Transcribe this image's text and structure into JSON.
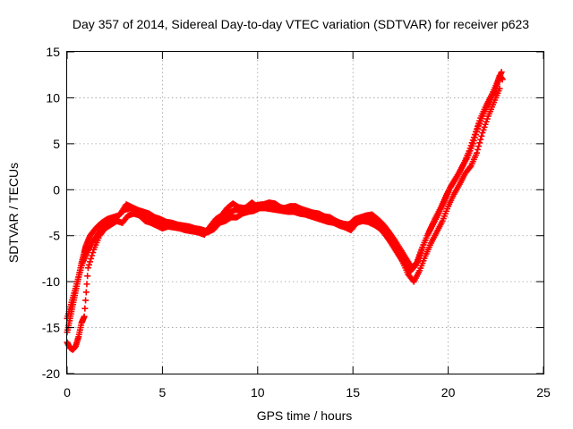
{
  "chart_data": {
    "type": "scatter",
    "title": "Day 357 of 2014, Sidereal Day-to-day VTEC variation (SDTVAR) for receiver p623",
    "xlabel": "GPS time / hours",
    "ylabel": "SDTVAR / TECUs",
    "xlim": [
      0,
      25
    ],
    "ylim": [
      -20,
      15
    ],
    "xticks": [
      0,
      5,
      10,
      15,
      20,
      25
    ],
    "yticks": [
      -20,
      -15,
      -10,
      -5,
      0,
      5,
      10,
      15
    ],
    "grid": true,
    "marker": "+",
    "color": "#ff0000",
    "series": [
      {
        "values_x": [
          0.0,
          0.15,
          0.3,
          0.45,
          0.6,
          0.75,
          0.9,
          1.0,
          1.2,
          1.5,
          1.8,
          2.1,
          2.4,
          2.7,
          3.0,
          3.3,
          3.6,
          3.9,
          4.2,
          4.5,
          4.8,
          5.1,
          5.4,
          5.7,
          6.0,
          6.3,
          6.6,
          6.9,
          7.2,
          7.5,
          7.8,
          8.1,
          8.4,
          8.7,
          9.0,
          9.3,
          9.6,
          9.9,
          10.2,
          10.5,
          10.8,
          11.1,
          11.4,
          11.7,
          12.0,
          12.3,
          12.6,
          12.9,
          13.2,
          13.5,
          13.8,
          14.1,
          14.4,
          14.7,
          15.0,
          15.3,
          15.6,
          15.9,
          16.2,
          16.5,
          16.8,
          17.1,
          17.4,
          17.7,
          18.0,
          18.3,
          18.6,
          18.9,
          19.2,
          19.5,
          19.8,
          20.1,
          20.4,
          20.7,
          21.0,
          21.3,
          21.6,
          21.9,
          22.2,
          22.5,
          22.7,
          22.85
        ],
        "values_y": [
          -15.5,
          -14.0,
          -12.5,
          -11.0,
          -9.5,
          -8.0,
          -6.8,
          -6.0,
          -5.0,
          -4.2,
          -3.6,
          -3.2,
          -3.0,
          -2.8,
          -2.2,
          -2.0,
          -2.3,
          -2.8,
          -3.2,
          -3.4,
          -3.6,
          -3.6,
          -3.7,
          -3.8,
          -4.0,
          -4.1,
          -4.3,
          -4.6,
          -4.9,
          -4.0,
          -3.2,
          -2.8,
          -2.0,
          -1.5,
          -1.9,
          -2.0,
          -1.8,
          -1.7,
          -1.6,
          -1.6,
          -1.7,
          -1.9,
          -2.0,
          -1.8,
          -1.8,
          -2.1,
          -2.3,
          -2.5,
          -2.6,
          -2.9,
          -3.0,
          -3.4,
          -3.7,
          -3.8,
          -3.6,
          -3.2,
          -3.0,
          -3.1,
          -3.6,
          -4.2,
          -5.0,
          -6.0,
          -7.0,
          -8.0,
          -8.9,
          -8.2,
          -6.5,
          -5.0,
          -3.8,
          -2.6,
          -1.2,
          0.2,
          1.2,
          2.4,
          3.5,
          5.0,
          7.0,
          8.5,
          9.8,
          11.0,
          12.4,
          12.0
        ]
      },
      {
        "values_x": [
          0.0,
          0.2,
          0.4,
          0.6,
          0.8,
          1.0,
          1.3,
          1.6,
          1.9,
          2.2,
          2.5,
          2.8,
          3.1,
          3.4,
          3.7,
          4.0,
          4.3,
          4.6,
          4.9,
          5.2,
          5.5,
          5.8,
          6.1,
          6.4,
          6.7,
          7.0,
          7.3,
          7.6,
          7.9,
          8.2,
          8.5,
          8.8,
          9.1,
          9.4,
          9.7,
          10.0,
          10.3,
          10.6,
          10.9,
          11.2,
          11.5,
          11.8,
          12.1,
          12.4,
          12.7,
          13.0,
          13.3,
          13.6,
          13.9,
          14.2,
          14.5,
          14.8,
          15.1,
          15.4,
          15.7,
          16.0,
          16.3,
          16.6,
          16.9,
          17.2,
          17.5,
          17.8,
          18.1,
          18.4,
          18.7,
          19.0,
          19.3,
          19.6,
          19.9,
          20.2,
          20.5,
          20.8,
          21.1,
          21.4,
          21.7,
          22.0,
          22.3,
          22.6,
          22.8
        ],
        "values_y": [
          -14.0,
          -12.5,
          -11.0,
          -9.5,
          -8.0,
          -7.0,
          -5.8,
          -4.8,
          -4.0,
          -3.6,
          -3.2,
          -2.6,
          -1.6,
          -1.9,
          -2.2,
          -2.4,
          -2.6,
          -3.0,
          -3.2,
          -3.5,
          -3.6,
          -3.8,
          -3.9,
          -4.0,
          -4.2,
          -4.3,
          -4.5,
          -4.0,
          -3.4,
          -3.0,
          -2.5,
          -2.2,
          -2.2,
          -1.9,
          -1.4,
          -1.9,
          -1.6,
          -1.4,
          -1.5,
          -1.9,
          -2.1,
          -2.2,
          -2.1,
          -2.3,
          -2.5,
          -2.7,
          -2.8,
          -3.0,
          -3.2,
          -3.5,
          -3.7,
          -3.8,
          -3.2,
          -3.0,
          -2.8,
          -2.7,
          -3.2,
          -3.8,
          -4.6,
          -5.5,
          -6.5,
          -7.5,
          -8.5,
          -7.8,
          -6.0,
          -4.5,
          -3.2,
          -2.0,
          -0.6,
          0.6,
          1.6,
          2.7,
          4.2,
          6.0,
          7.8,
          9.2,
          10.4,
          11.8,
          12.8
        ]
      },
      {
        "values_x": [
          0.0,
          0.15,
          0.3,
          0.45,
          0.6,
          0.75,
          0.9,
          1.1,
          1.4,
          1.7,
          2.0,
          2.3,
          2.6,
          2.9,
          3.2,
          3.5,
          3.8,
          4.1,
          4.4,
          4.7,
          5.0,
          5.3,
          5.6,
          5.9,
          6.2,
          6.5,
          6.8,
          7.1,
          7.4,
          7.7,
          8.0,
          8.3,
          8.6,
          8.9,
          9.2,
          9.5,
          9.8,
          10.1,
          10.4,
          10.7,
          11.0,
          11.3,
          11.6,
          11.9,
          12.2,
          12.5,
          12.8,
          13.1,
          13.4,
          13.7,
          14.0,
          14.3,
          14.6,
          14.9,
          15.2,
          15.5,
          15.8,
          16.1,
          16.4,
          16.7,
          17.0,
          17.3,
          17.6,
          17.9,
          18.2,
          18.5,
          18.8,
          19.1,
          19.4,
          19.7,
          20.0,
          20.3,
          20.6,
          20.9,
          21.2,
          21.5,
          21.8,
          22.1,
          22.4,
          22.7
        ],
        "values_y": [
          -16.6,
          -17.2,
          -17.4,
          -17.0,
          -16.0,
          -14.5,
          -13.8,
          -8.5,
          -6.5,
          -5.0,
          -4.2,
          -3.8,
          -3.4,
          -3.6,
          -2.8,
          -2.6,
          -2.8,
          -3.4,
          -3.6,
          -3.9,
          -4.2,
          -4.0,
          -4.1,
          -4.2,
          -4.4,
          -4.5,
          -4.6,
          -4.8,
          -4.6,
          -4.3,
          -3.6,
          -3.4,
          -3.0,
          -3.0,
          -2.6,
          -2.4,
          -2.3,
          -2.0,
          -2.0,
          -2.1,
          -2.2,
          -2.3,
          -2.4,
          -2.4,
          -2.6,
          -2.7,
          -2.9,
          -3.1,
          -3.3,
          -3.5,
          -3.6,
          -3.9,
          -4.1,
          -4.4,
          -3.6,
          -3.4,
          -3.5,
          -3.8,
          -4.2,
          -4.9,
          -5.8,
          -6.8,
          -7.8,
          -9.2,
          -10.0,
          -8.8,
          -7.2,
          -5.8,
          -4.6,
          -3.4,
          -1.8,
          -0.5,
          0.6,
          1.8,
          2.6,
          4.0,
          6.2,
          8.0,
          9.5,
          11.0
        ]
      }
    ]
  }
}
